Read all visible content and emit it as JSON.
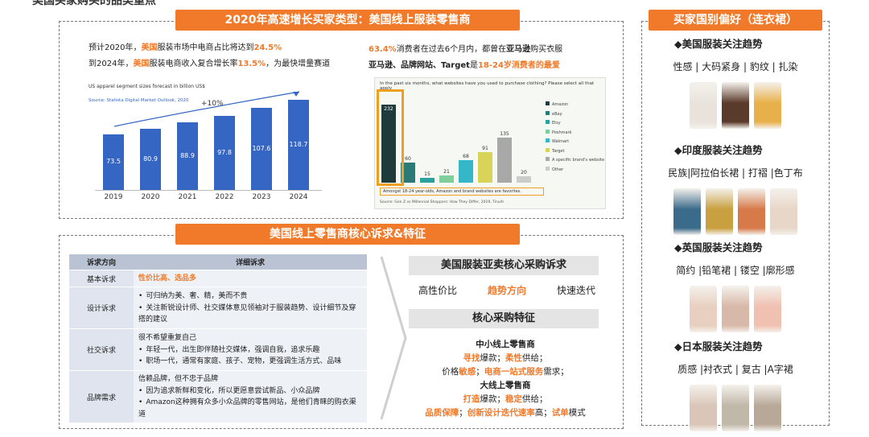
{
  "top_partial_text": "美国买家购买的品类重点",
  "left_top": {
    "banner": "2020年高速增长买家类型：美国线上服装零售商",
    "line1": [
      "预计2020年，",
      "美国",
      "服装市场中电商占比将达到",
      "24.5%"
    ],
    "line2": [
      "到2024年，",
      "美国",
      "服装电商收入复合增长率",
      "13.5%",
      "，为最快增量赛道"
    ],
    "chart": {
      "title": "US apparel segment sizes forecast in billion US$",
      "source": "Source: Statista Digital Market Outlook, 2020",
      "growth_label": "+10%"
    }
  },
  "chart_data": [
    {
      "type": "bar",
      "title": "US apparel segment sizes forecast in billion US$",
      "categories": [
        "2019",
        "2020",
        "2021",
        "2022",
        "2023",
        "2024"
      ],
      "values": [
        73.5,
        80.9,
        88.9,
        97.8,
        107.6,
        118.7
      ],
      "value_labels": [
        "73.5",
        "80.9",
        "88.9",
        "97.8",
        "107.6",
        "118.7"
      ],
      "color": "#3566c4"
    },
    {
      "type": "bar",
      "title": "In the past six months, what websites have you used to purchase clothing? Please select all that apply",
      "categories": [
        "Amazon",
        "eBay",
        "Etsy",
        "Poshmark",
        "Walmart",
        "Target",
        "A specific brand's website",
        "Other"
      ],
      "values": [
        232,
        60,
        15,
        21,
        68,
        91,
        135,
        20
      ],
      "value_labels": [
        "232",
        "60",
        "15",
        "21",
        "68",
        "91",
        "135",
        "20"
      ],
      "colors": [
        "#1f3a3a",
        "#2a7a78",
        "#2aa3a0",
        "#7fcf9a",
        "#35b6c9",
        "#d8d45a",
        "#a8a8a8",
        "#cccccc"
      ],
      "note": "Amongst 18-24 year-olds, Amazon and brand websites are favorites.",
      "source": "Source: Gen Z vs Millennial Shoppers: How They Differ, 2019, Tinuiti"
    }
  ],
  "right_of_chart": {
    "line1": [
      "63.4%",
      "消费者在过去6个月内，都曾在",
      "亚马逊",
      "购买衣服"
    ],
    "line2": [
      "亚马逊、品牌网站、Target",
      "是",
      "18-24岁消费者的最爱"
    ]
  },
  "bottom": {
    "banner": "美国线上零售商核心诉求&特征",
    "table": {
      "headers": [
        "诉求方向",
        "详细诉求"
      ],
      "rows": [
        {
          "cat": "基本诉求",
          "lines": [
            "性价比高、选品多"
          ]
        },
        {
          "cat": "设计诉求",
          "bullets": [
            "可归纳为美、奢、精，美而不贵",
            "关注新锐设计师、社交媒体意见领袖对于服装趋势、设计细节及穿搭的建议"
          ]
        },
        {
          "cat": "社交诉求",
          "intro": "很不希望重复自己",
          "bullets": [
            "年轻一代，出生即伴随社交媒体，强调自我，追求乐趣",
            "职场一代，通常有家庭、孩子、宠物，更强调生活方式、品味"
          ]
        },
        {
          "cat": "品牌需求",
          "intro": "信赖品牌，但不忠于品牌",
          "bullets": [
            "因为追求新鲜和变化，所以更愿意尝试新品、小众品牌",
            "Amazon这种拥有众多小众品牌的零售网站，是他们青睐的购衣渠道"
          ]
        }
      ]
    },
    "core_title": "美国服装亚卖核心采购诉求",
    "core_items": [
      "高性价比",
      "趋势方向",
      "快速迭代"
    ],
    "feature_title": "核心采购特征",
    "small_retailer": "中小线上零售商",
    "small_line1": [
      "寻找",
      "爆款；",
      "柔性",
      "供给；"
    ],
    "small_line2": [
      "价格",
      "敏感",
      "；",
      "电商一站式服务",
      "需求；"
    ],
    "big_retailer": "大线上零售商",
    "big_line1": [
      "打造",
      "爆款；",
      "稳定",
      "供给；"
    ],
    "big_line2": [
      "品质保障",
      "；",
      "创新设计迭代速率",
      "高；",
      "试单",
      "模式"
    ]
  },
  "right_panel": {
    "banner": "买家国别偏好（连衣裙）",
    "sections": [
      {
        "title": "◆美国服装关注趋势",
        "tags": "性感 | 大码紧身 | 豹纹 | 扎染"
      },
      {
        "title": "◆印度服装关注趋势",
        "tags": "民族|阿拉伯长裙 | 打褶 |色丁布"
      },
      {
        "title": "◆英国服装关注趋势",
        "tags": "简约 |铅笔裙 | 镂空 |廓形感"
      },
      {
        "title": "◆日本服装关注趋势",
        "tags": "质感 |衬衣式 | 复古 |A字裙"
      }
    ]
  }
}
